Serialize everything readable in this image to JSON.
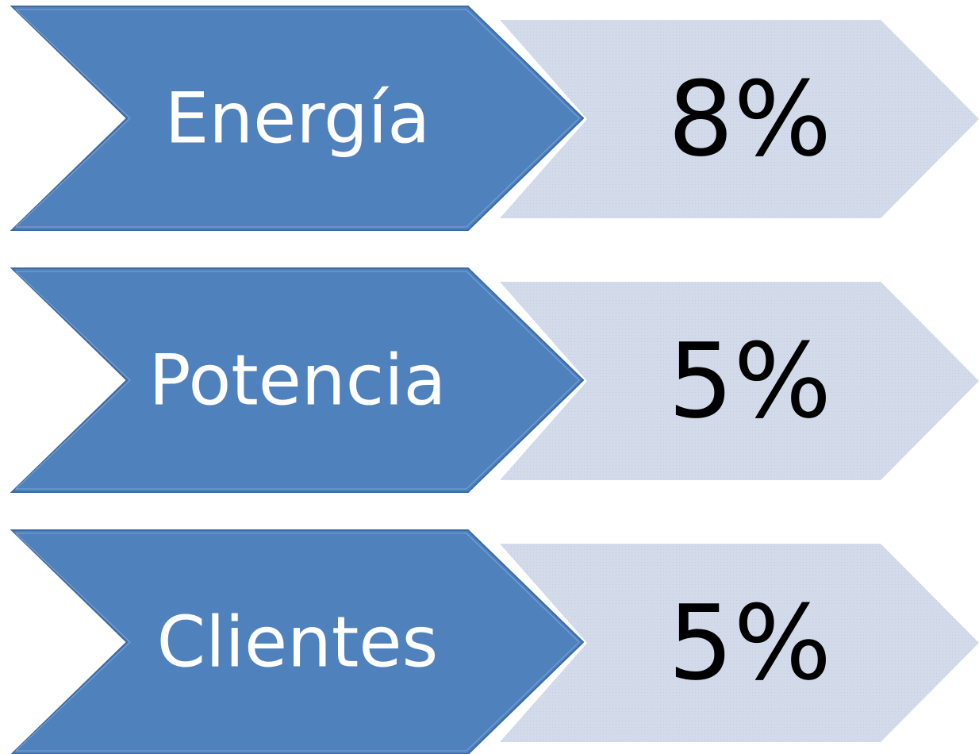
{
  "items": [
    {
      "label": "Energía",
      "value": "8%"
    },
    {
      "label": "Potencia",
      "value": "5%"
    },
    {
      "label": "Clientes",
      "value": "5%"
    }
  ]
}
